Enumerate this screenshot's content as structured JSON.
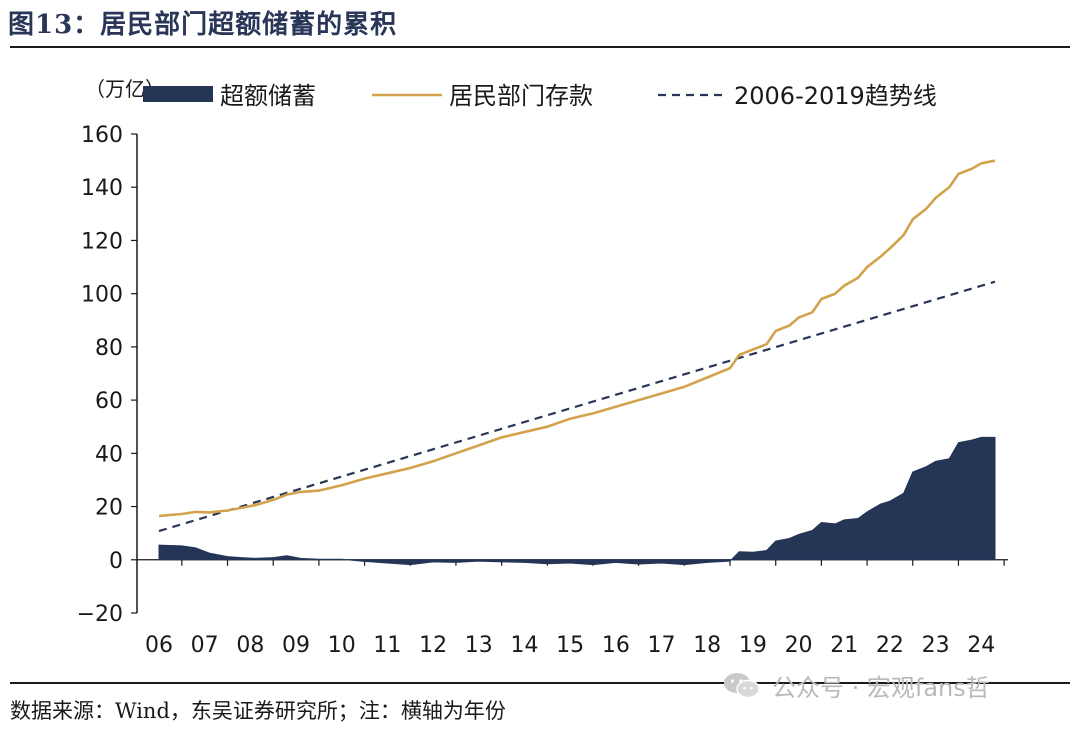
{
  "figure": {
    "title": "图13：居民部门超额储蓄的累积",
    "source": "数据来源：Wind，东吴证券研究所；注：横轴为年份"
  },
  "watermark": {
    "text": "公众号 · 宏观fans哲",
    "icon": "wechat-icon"
  },
  "colors": {
    "excess": "#253556",
    "deposit": "#d2a24c",
    "trend": "#2a3658",
    "axis": "#1a1a1a"
  },
  "chart_data": {
    "type": "area",
    "unit_label": "（万亿）",
    "xlabel": "",
    "ylabel": "",
    "ylim": [
      -20,
      160
    ],
    "yticks": [
      -20,
      0,
      20,
      40,
      60,
      80,
      100,
      120,
      140,
      160
    ],
    "xlim": [
      2006,
      2025
    ],
    "xticks": [
      "06",
      "07",
      "08",
      "09",
      "10",
      "11",
      "12",
      "13",
      "14",
      "15",
      "16",
      "17",
      "18",
      "19",
      "20",
      "21",
      "22",
      "23",
      "24"
    ],
    "grid": false,
    "legend_position": "top",
    "series": [
      {
        "name": "超额储蓄",
        "kind": "area",
        "x": [
          2006.5,
          2007.0,
          2007.3,
          2007.6,
          2008.0,
          2008.3,
          2008.6,
          2009.0,
          2009.3,
          2009.6,
          2010.0,
          2010.5,
          2011.0,
          2011.5,
          2012.0,
          2012.5,
          2013.0,
          2013.5,
          2014.0,
          2014.5,
          2015.0,
          2015.5,
          2016.0,
          2016.5,
          2017.0,
          2017.5,
          2018.0,
          2018.5,
          2019.0,
          2019.2,
          2019.5,
          2019.8,
          2020.0,
          2020.3,
          2020.5,
          2020.8,
          2021.0,
          2021.3,
          2021.5,
          2021.8,
          2022.0,
          2022.3,
          2022.5,
          2022.8,
          2023.0,
          2023.3,
          2023.5,
          2023.8,
          2024.0,
          2024.3,
          2024.5,
          2024.8
        ],
        "y": [
          5.5,
          5.2,
          4.5,
          2.5,
          1.2,
          0.8,
          0.5,
          0.8,
          1.5,
          0.5,
          0.2,
          0.2,
          -0.6,
          -1.2,
          -1.8,
          -0.8,
          -1.0,
          -0.5,
          -0.8,
          -1.0,
          -1.5,
          -1.2,
          -1.8,
          -1.0,
          -1.6,
          -1.2,
          -1.8,
          -1.0,
          -0.5,
          3.0,
          2.8,
          3.5,
          7.0,
          8.0,
          9.5,
          11.0,
          14.0,
          13.5,
          15.0,
          15.5,
          18.0,
          21.0,
          22.0,
          25.0,
          33.0,
          35.0,
          37.0,
          38.0,
          44.0,
          45.0,
          46.0,
          46.0
        ]
      },
      {
        "name": "居民部门存款",
        "kind": "line",
        "x": [
          2006.5,
          2007.0,
          2007.3,
          2007.6,
          2008.0,
          2008.3,
          2008.6,
          2009.0,
          2009.3,
          2009.6,
          2010.0,
          2010.5,
          2011.0,
          2011.5,
          2012.0,
          2012.5,
          2013.0,
          2013.5,
          2014.0,
          2014.5,
          2015.0,
          2015.5,
          2016.0,
          2016.5,
          2017.0,
          2017.5,
          2018.0,
          2018.5,
          2019.0,
          2019.2,
          2019.5,
          2019.8,
          2020.0,
          2020.3,
          2020.5,
          2020.8,
          2021.0,
          2021.3,
          2021.5,
          2021.8,
          2022.0,
          2022.3,
          2022.5,
          2022.8,
          2023.0,
          2023.3,
          2023.5,
          2023.8,
          2024.0,
          2024.3,
          2024.5,
          2024.8
        ],
        "y": [
          16.5,
          17.2,
          18.0,
          17.8,
          18.5,
          19.5,
          20.5,
          22.5,
          24.5,
          25.5,
          26.0,
          28.0,
          30.5,
          32.5,
          34.5,
          37.0,
          40.0,
          43.0,
          46.0,
          48.0,
          50.0,
          53.0,
          55.0,
          57.5,
          60.0,
          62.5,
          65.0,
          68.5,
          72.0,
          77.0,
          79.0,
          81.0,
          86.0,
          88.0,
          91.0,
          93.0,
          98.0,
          100.0,
          103.0,
          106.0,
          110.0,
          114.0,
          117.0,
          122.0,
          128.0,
          132.0,
          136.0,
          140.0,
          145.0,
          147.0,
          149.0,
          150.0
        ]
      },
      {
        "name": "2006-2019趋势线",
        "kind": "dashed",
        "x": [
          2006.5,
          2024.8
        ],
        "y": [
          10.8,
          104.5
        ]
      }
    ]
  }
}
